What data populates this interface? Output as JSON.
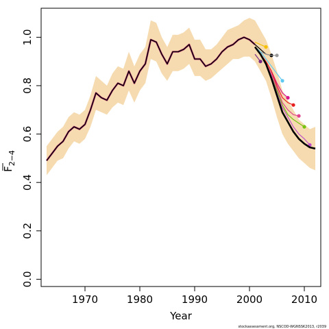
{
  "chart_data": {
    "type": "line",
    "xlabel": "Year",
    "ylabel_main": "F",
    "ylabel_sub": "2−4",
    "xlim": [
      1962,
      2013
    ],
    "ylim": [
      -0.03,
      1.12
    ],
    "x_ticks": [
      1970,
      1980,
      1990,
      2000,
      2010
    ],
    "y_ticks": [
      0.0,
      0.2,
      0.4,
      0.6,
      0.8,
      1.0
    ],
    "y_tick_labels": [
      "0.0",
      "0.2",
      "0.4",
      "0.6",
      "0.8",
      "1.0"
    ],
    "band_color": "#f6dbb0",
    "band": {
      "x": [
        1963,
        1964,
        1965,
        1966,
        1967,
        1968,
        1969,
        1970,
        1971,
        1972,
        1973,
        1974,
        1975,
        1976,
        1977,
        1978,
        1979,
        1980,
        1981,
        1982,
        1983,
        1984,
        1985,
        1986,
        1987,
        1988,
        1989,
        1990,
        1991,
        1992,
        1993,
        1994,
        1995,
        1996,
        1997,
        1998,
        1999,
        2000,
        2001,
        2002,
        2003,
        2004,
        2005,
        2006,
        2007,
        2008,
        2009,
        2010,
        2011,
        2012
      ],
      "upper": [
        0.55,
        0.58,
        0.61,
        0.63,
        0.67,
        0.69,
        0.68,
        0.7,
        0.76,
        0.84,
        0.82,
        0.8,
        0.85,
        0.88,
        0.87,
        0.94,
        0.88,
        0.93,
        0.96,
        1.07,
        1.06,
        1.0,
        0.96,
        1.01,
        1.01,
        1.02,
        1.04,
        0.99,
        0.99,
        0.95,
        0.95,
        0.97,
        1.0,
        1.03,
        1.04,
        1.05,
        1.07,
        1.08,
        1.07,
        1.03,
        0.99,
        0.93,
        0.86,
        0.78,
        0.74,
        0.7,
        0.66,
        0.64,
        0.62,
        0.63
      ],
      "lower": [
        0.43,
        0.46,
        0.49,
        0.5,
        0.54,
        0.57,
        0.56,
        0.58,
        0.63,
        0.7,
        0.69,
        0.68,
        0.71,
        0.73,
        0.72,
        0.78,
        0.73,
        0.78,
        0.81,
        0.91,
        0.9,
        0.85,
        0.82,
        0.86,
        0.86,
        0.87,
        0.89,
        0.84,
        0.84,
        0.82,
        0.83,
        0.85,
        0.87,
        0.89,
        0.91,
        0.91,
        0.92,
        0.92,
        0.9,
        0.86,
        0.82,
        0.75,
        0.67,
        0.6,
        0.56,
        0.53,
        0.5,
        0.48,
        0.46,
        0.45
      ]
    },
    "base_x": [
      1963,
      1964,
      1965,
      1966,
      1967,
      1968,
      1969,
      1970,
      1971,
      1972,
      1973,
      1974,
      1975,
      1976,
      1977,
      1978,
      1979,
      1980,
      1981,
      1982,
      1983,
      1984,
      1985,
      1986,
      1987,
      1988,
      1989,
      1990,
      1991,
      1992,
      1993,
      1994,
      1995,
      1996,
      1997,
      1998,
      1999,
      2000,
      2001
    ],
    "base_y": [
      0.49,
      0.52,
      0.55,
      0.57,
      0.61,
      0.63,
      0.62,
      0.64,
      0.7,
      0.77,
      0.75,
      0.74,
      0.78,
      0.81,
      0.8,
      0.86,
      0.81,
      0.86,
      0.89,
      0.99,
      0.98,
      0.93,
      0.89,
      0.94,
      0.94,
      0.95,
      0.97,
      0.91,
      0.91,
      0.88,
      0.89,
      0.91,
      0.94,
      0.96,
      0.97,
      0.99,
      1.0,
      0.99,
      0.97
    ],
    "series": [
      {
        "color": "#7b2a86",
        "end_marker": true,
        "x": [
          2001,
          2002
        ],
        "y": [
          0.93,
          0.9
        ]
      },
      {
        "color": "#f5c000",
        "end_marker": true,
        "x": [
          2001,
          2002,
          2003
        ],
        "y": [
          0.98,
          0.97,
          0.96
        ]
      },
      {
        "color": "#000000",
        "end_marker": true,
        "x": [
          2001,
          2002,
          2003,
          2004
        ],
        "y": [
          0.97,
          0.95,
          0.93,
          0.925
        ]
      },
      {
        "color": "#999999",
        "end_marker": true,
        "x": [
          2001,
          2002,
          2003,
          2004,
          2005
        ],
        "y": [
          0.96,
          0.94,
          0.93,
          0.925,
          0.925
        ]
      },
      {
        "color": "#5ec8f0",
        "end_marker": true,
        "x": [
          2001,
          2002,
          2003,
          2004,
          2005,
          2006
        ],
        "y": [
          0.96,
          0.94,
          0.91,
          0.88,
          0.85,
          0.82
        ]
      },
      {
        "color": "#d6168c",
        "end_marker": true,
        "x": [
          2001,
          2002,
          2003,
          2004,
          2005,
          2006,
          2007
        ],
        "y": [
          0.96,
          0.93,
          0.9,
          0.86,
          0.81,
          0.77,
          0.75
        ]
      },
      {
        "color": "#e61f1f",
        "end_marker": true,
        "x": [
          2001,
          2002,
          2003,
          2004,
          2005,
          2006,
          2007,
          2008
        ],
        "y": [
          0.96,
          0.93,
          0.9,
          0.86,
          0.8,
          0.75,
          0.73,
          0.72
        ]
      },
      {
        "color": "#e0438c",
        "end_marker": true,
        "x": [
          2001,
          2002,
          2003,
          2004,
          2005,
          2006,
          2007,
          2008,
          2009
        ],
        "y": [
          0.96,
          0.93,
          0.89,
          0.85,
          0.79,
          0.73,
          0.7,
          0.68,
          0.675
        ]
      },
      {
        "color": "#76c410",
        "end_marker": true,
        "x": [
          2001,
          2002,
          2003,
          2004,
          2005,
          2006,
          2007,
          2008,
          2009,
          2010
        ],
        "y": [
          0.96,
          0.93,
          0.89,
          0.84,
          0.78,
          0.72,
          0.68,
          0.66,
          0.645,
          0.63
        ]
      },
      {
        "color": "#c050c8",
        "end_marker": true,
        "x": [
          2001,
          2002,
          2003,
          2004,
          2005,
          2006,
          2007,
          2008,
          2009,
          2010,
          2011
        ],
        "y": [
          0.96,
          0.93,
          0.89,
          0.84,
          0.77,
          0.71,
          0.67,
          0.63,
          0.6,
          0.58,
          0.555
        ]
      },
      {
        "color": "#000000",
        "width": 2.6,
        "end_marker": false,
        "x": [
          2001,
          2002,
          2003,
          2004,
          2005,
          2006,
          2007,
          2008,
          2009,
          2010,
          2011,
          2012
        ],
        "y": [
          0.96,
          0.93,
          0.89,
          0.83,
          0.76,
          0.69,
          0.65,
          0.61,
          0.58,
          0.56,
          0.545,
          0.54
        ]
      }
    ]
  },
  "footer_text": "stockassessment.org, NSCOD-WGNSSK2013, r2039"
}
